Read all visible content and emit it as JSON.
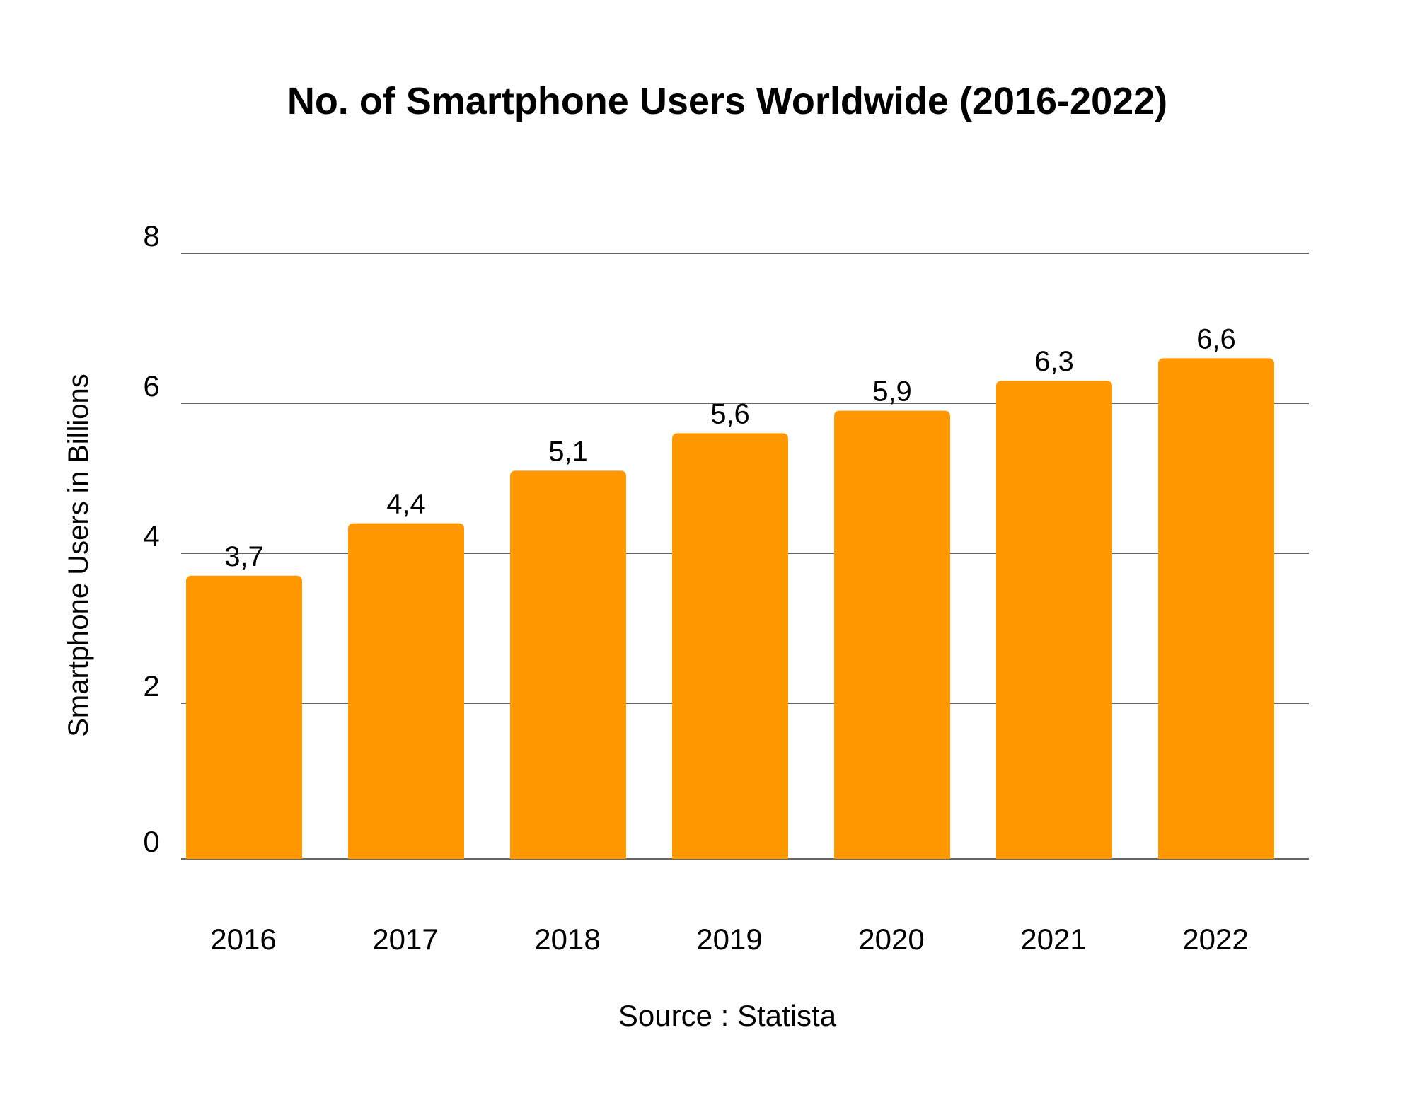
{
  "chart_data": {
    "type": "bar",
    "title": "No. of Smartphone Users Worldwide (2016-2022)",
    "xlabel": "",
    "ylabel": "Smartphone Users in Billions",
    "source": "Source : Statista",
    "categories": [
      "2016",
      "2017",
      "2018",
      "2019",
      "2020",
      "2021",
      "2022"
    ],
    "values": [
      3.7,
      4.4,
      5.1,
      5.6,
      5.9,
      6.3,
      6.6
    ],
    "value_labels": [
      "3,7",
      "4,4",
      "5,1",
      "5,6",
      "5,9",
      "6,3",
      "6,6"
    ],
    "ylim": [
      0,
      8
    ],
    "yticks": [
      "0",
      "2",
      "4",
      "6",
      "8"
    ],
    "grid": true,
    "bar_color": "#FF9800",
    "legend": "none"
  }
}
